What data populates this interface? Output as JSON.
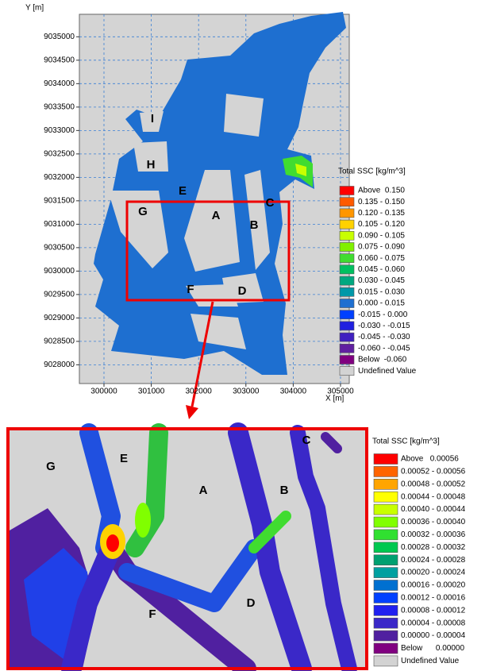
{
  "chart_data": [
    {
      "type": "map",
      "x_label": "X [m]",
      "y_label": "Y [m]",
      "xlim": [
        299480,
        305185
      ],
      "ylim": [
        9027600,
        9035480
      ],
      "xticks": [
        300000,
        301000,
        302000,
        303000,
        304000,
        305000
      ],
      "yticks": [
        9028000,
        9028500,
        9029000,
        9029500,
        9030000,
        9030500,
        9031000,
        9031500,
        9032000,
        9032500,
        9033000,
        9033500,
        9034000,
        9034500,
        9035000
      ],
      "grid": true,
      "grid_color": "#3a7fd5",
      "legend": {
        "title": "Total SSC [kg/m^3]",
        "entries": [
          {
            "label": "Above  0.150",
            "color": "#ff0000"
          },
          {
            "label": "0.135 - 0.150",
            "color": "#ff5a00"
          },
          {
            "label": "0.120 - 0.135",
            "color": "#ff9600"
          },
          {
            "label": "0.105 - 0.120",
            "color": "#ffd200"
          },
          {
            "label": "0.090 - 0.105",
            "color": "#c8ff00"
          },
          {
            "label": "0.075 - 0.090",
            "color": "#80f000"
          },
          {
            "label": "0.060 - 0.075",
            "color": "#40dc30"
          },
          {
            "label": "0.045 - 0.060",
            "color": "#00c060"
          },
          {
            "label": "0.030 - 0.045",
            "color": "#00a880"
          },
          {
            "label": "0.015 - 0.030",
            "color": "#0098a8"
          },
          {
            "label": "0.000 - 0.015",
            "color": "#1e6fd0"
          },
          {
            "label": "-0.015 - 0.000",
            "color": "#0040ff"
          },
          {
            "label": "-0.030 - -0.015",
            "color": "#2020e0"
          },
          {
            "label": "-0.045 - -0.030",
            "color": "#4020c0"
          },
          {
            "label": "-0.060 - -0.045",
            "color": "#6020a0"
          },
          {
            "label": "Below  -0.060",
            "color": "#800080"
          },
          {
            "label": "Undefined Value",
            "color": "#d3d3d3"
          }
        ]
      },
      "annotations": [
        "I",
        "H",
        "E",
        "G",
        "A",
        "B",
        "C",
        "F",
        "D"
      ]
    },
    {
      "type": "map",
      "legend": {
        "title": "Total SSC [kg/m^3]",
        "entries": [
          {
            "label": "Above   0.00056",
            "color": "#ff0000"
          },
          {
            "label": "0.00052 - 0.00056",
            "color": "#ff6400"
          },
          {
            "label": "0.00048 - 0.00052",
            "color": "#ffa500"
          },
          {
            "label": "0.00044 - 0.00048",
            "color": "#ffff00"
          },
          {
            "label": "0.00040 - 0.00044",
            "color": "#c8ff00"
          },
          {
            "label": "0.00036 - 0.00040",
            "color": "#80ff00"
          },
          {
            "label": "0.00032 - 0.00036",
            "color": "#30e030"
          },
          {
            "label": "0.00028 - 0.00032",
            "color": "#00c850"
          },
          {
            "label": "0.00024 - 0.00028",
            "color": "#00a070"
          },
          {
            "label": "0.00020 - 0.00024",
            "color": "#00a0a0"
          },
          {
            "label": "0.00016 - 0.00020",
            "color": "#0070d0"
          },
          {
            "label": "0.00012 - 0.00016",
            "color": "#0040ff"
          },
          {
            "label": "0.00008 - 0.00012",
            "color": "#2020f0"
          },
          {
            "label": "0.00004 - 0.00008",
            "color": "#3a28c8"
          },
          {
            "label": "0.00000 - 0.00004",
            "color": "#5020a0"
          },
          {
            "label": "Below      0.00000",
            "color": "#800080"
          },
          {
            "label": "Undefined Value",
            "color": "#d3d3d3"
          }
        ]
      },
      "annotations": [
        "G",
        "E",
        "A",
        "B",
        "C",
        "F",
        "D"
      ]
    }
  ]
}
